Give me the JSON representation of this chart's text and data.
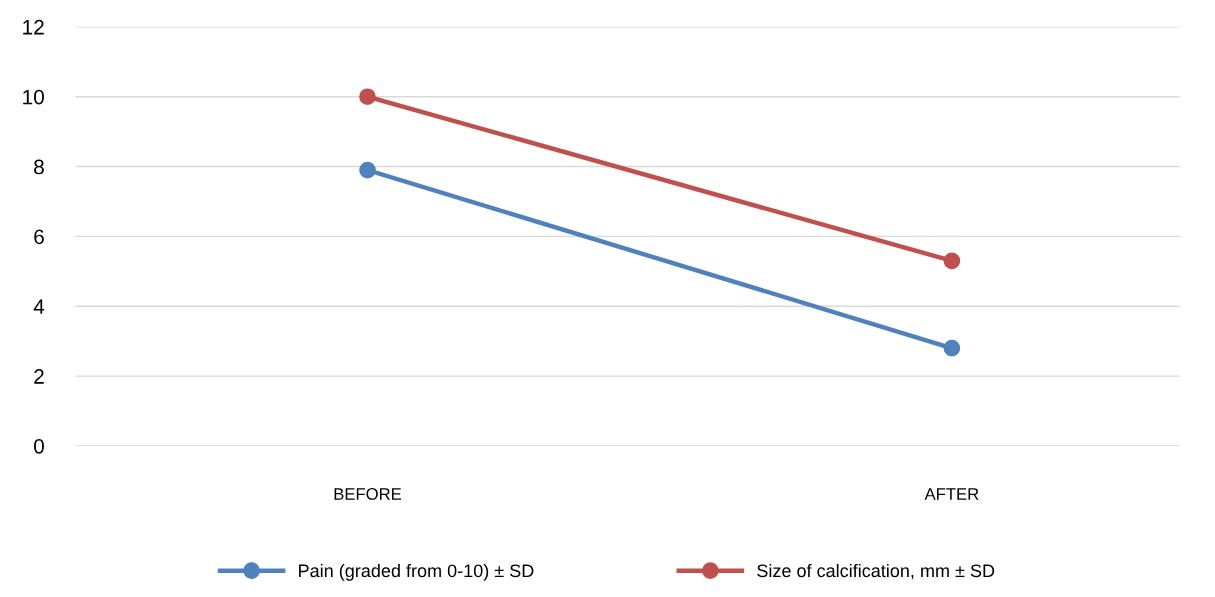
{
  "chart_data": {
    "type": "line",
    "categories": [
      "BEFORE",
      "AFTER"
    ],
    "series": [
      {
        "name": "Pain (graded from 0-10) ± SD",
        "color": "#4f81bd",
        "values": [
          7.9,
          2.8
        ]
      },
      {
        "name": "Size of calcification, mm ± SD",
        "color": "#c0504d",
        "values": [
          10.0,
          5.3
        ]
      }
    ],
    "ylim": [
      0,
      12
    ],
    "yticks": [
      0,
      2,
      4,
      6,
      8,
      10,
      12
    ],
    "grid": "y",
    "legend": "bottom",
    "marker": "circle",
    "line_style": "solid"
  }
}
